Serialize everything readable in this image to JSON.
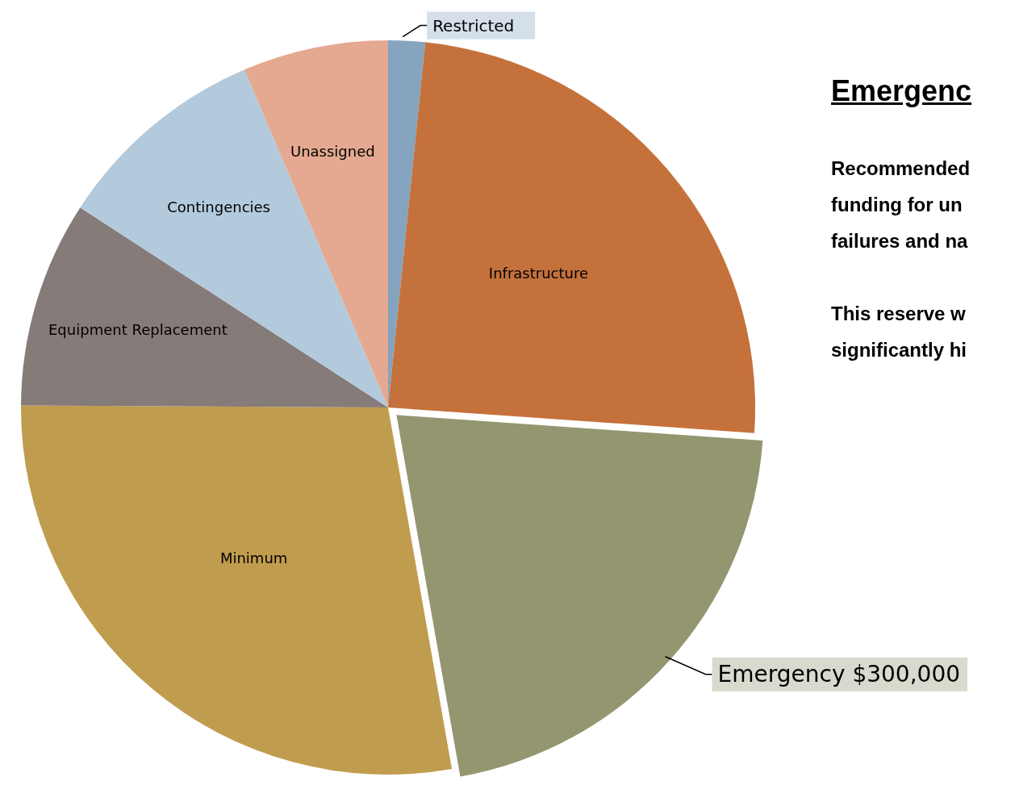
{
  "chart_data": {
    "type": "pie",
    "title": "Emergenc",
    "categories": [
      "Restricted",
      "Infrastructure",
      "Emergency",
      "Minimum",
      "Equipment Replacement",
      "Contingencies",
      "Unassigned"
    ],
    "values": [
      23000,
      348000,
      300000,
      396000,
      129000,
      134000,
      91000
    ],
    "colors": [
      "#84a4bf",
      "#c5713c",
      "#93966f",
      "#c09c4f",
      "#857b78",
      "#b3cadd",
      "#e4a990"
    ],
    "value_labels": [
      null,
      null,
      "$300,000",
      null,
      null,
      null,
      null
    ],
    "annotations": [
      "Recommended",
      "funding for un",
      "failures and na",
      "This reserve w",
      "significantly hi"
    ],
    "legend": false
  }
}
